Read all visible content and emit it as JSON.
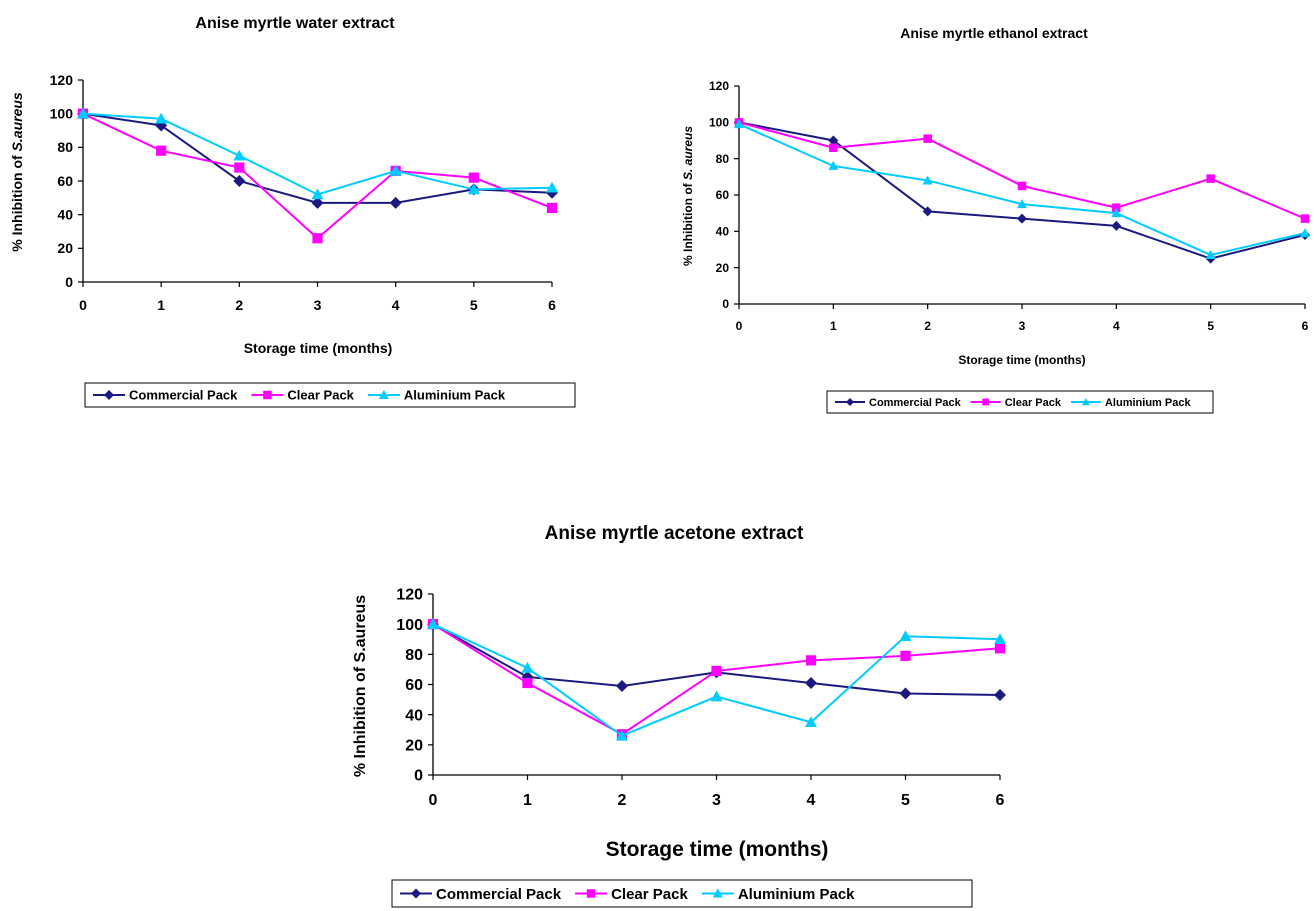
{
  "colors": {
    "commercial": "#1a1a80",
    "clear": "#ff00ff",
    "aluminium": "#00ccff"
  },
  "chart_data": [
    {
      "type": "line",
      "title": "Anise myrtle water extract",
      "xlabel": "Storage time (months)",
      "ylabel_prefix": "% Inhibition of ",
      "ylabel_species": "S.aureus",
      "x": [
        0,
        1,
        2,
        3,
        4,
        5,
        6
      ],
      "xticks": [
        "0",
        "1",
        "2",
        "3",
        "4",
        "5",
        "6"
      ],
      "yticks": [
        "0",
        "20",
        "40",
        "60",
        "80",
        "100",
        "120"
      ],
      "ylim": [
        0,
        120
      ],
      "grid": false,
      "legend_position": "bottom",
      "series": [
        {
          "name": "Commercial Pack",
          "marker": "diamond",
          "values": [
            100,
            93,
            60,
            47,
            47,
            55,
            53
          ]
        },
        {
          "name": "Clear Pack",
          "marker": "square",
          "values": [
            100,
            78,
            68,
            26,
            66,
            62,
            44
          ]
        },
        {
          "name": "Aluminium Pack",
          "marker": "triangle",
          "values": [
            100,
            97,
            75,
            52,
            66,
            55,
            56
          ]
        }
      ]
    },
    {
      "type": "line",
      "title": "Anise myrtle ethanol extract",
      "xlabel": "Storage time (months)",
      "ylabel_prefix": "% Inhibition of ",
      "ylabel_species": "S. aureus",
      "x": [
        0,
        1,
        2,
        3,
        4,
        5,
        6
      ],
      "xticks": [
        "0",
        "1",
        "2",
        "3",
        "4",
        "5",
        "6"
      ],
      "yticks": [
        "0",
        "20",
        "40",
        "60",
        "80",
        "100",
        "120"
      ],
      "ylim": [
        0,
        120
      ],
      "grid": false,
      "legend_position": "bottom",
      "series": [
        {
          "name": "Commercial Pack",
          "marker": "diamond",
          "values": [
            100,
            90,
            51,
            47,
            43,
            25,
            38
          ]
        },
        {
          "name": "Clear Pack",
          "marker": "square",
          "values": [
            100,
            86,
            91,
            65,
            53,
            69,
            47
          ]
        },
        {
          "name": "Aluminium Pack",
          "marker": "triangle",
          "values": [
            99,
            76,
            68,
            55,
            50,
            27,
            39
          ]
        }
      ]
    },
    {
      "type": "line",
      "title": "Anise myrtle acetone extract",
      "xlabel": "Storage time (months)",
      "ylabel_prefix": "% Inhibition of S.aureus",
      "ylabel_species": "",
      "x": [
        0,
        1,
        2,
        3,
        4,
        5,
        6
      ],
      "xticks": [
        "0",
        "1",
        "2",
        "3",
        "4",
        "5",
        "6"
      ],
      "yticks": [
        "0",
        "20",
        "40",
        "60",
        "80",
        "100",
        "120"
      ],
      "ylim": [
        0,
        120
      ],
      "grid": false,
      "legend_position": "bottom",
      "series": [
        {
          "name": "Commercial Pack",
          "marker": "diamond",
          "values": [
            100,
            65,
            59,
            68,
            61,
            54,
            53
          ]
        },
        {
          "name": "Clear Pack",
          "marker": "square",
          "values": [
            100,
            61,
            27,
            69,
            76,
            79,
            84
          ]
        },
        {
          "name": "Aluminium Pack",
          "marker": "triangle",
          "values": [
            100,
            71,
            26,
            52,
            35,
            92,
            90
          ]
        }
      ]
    }
  ]
}
